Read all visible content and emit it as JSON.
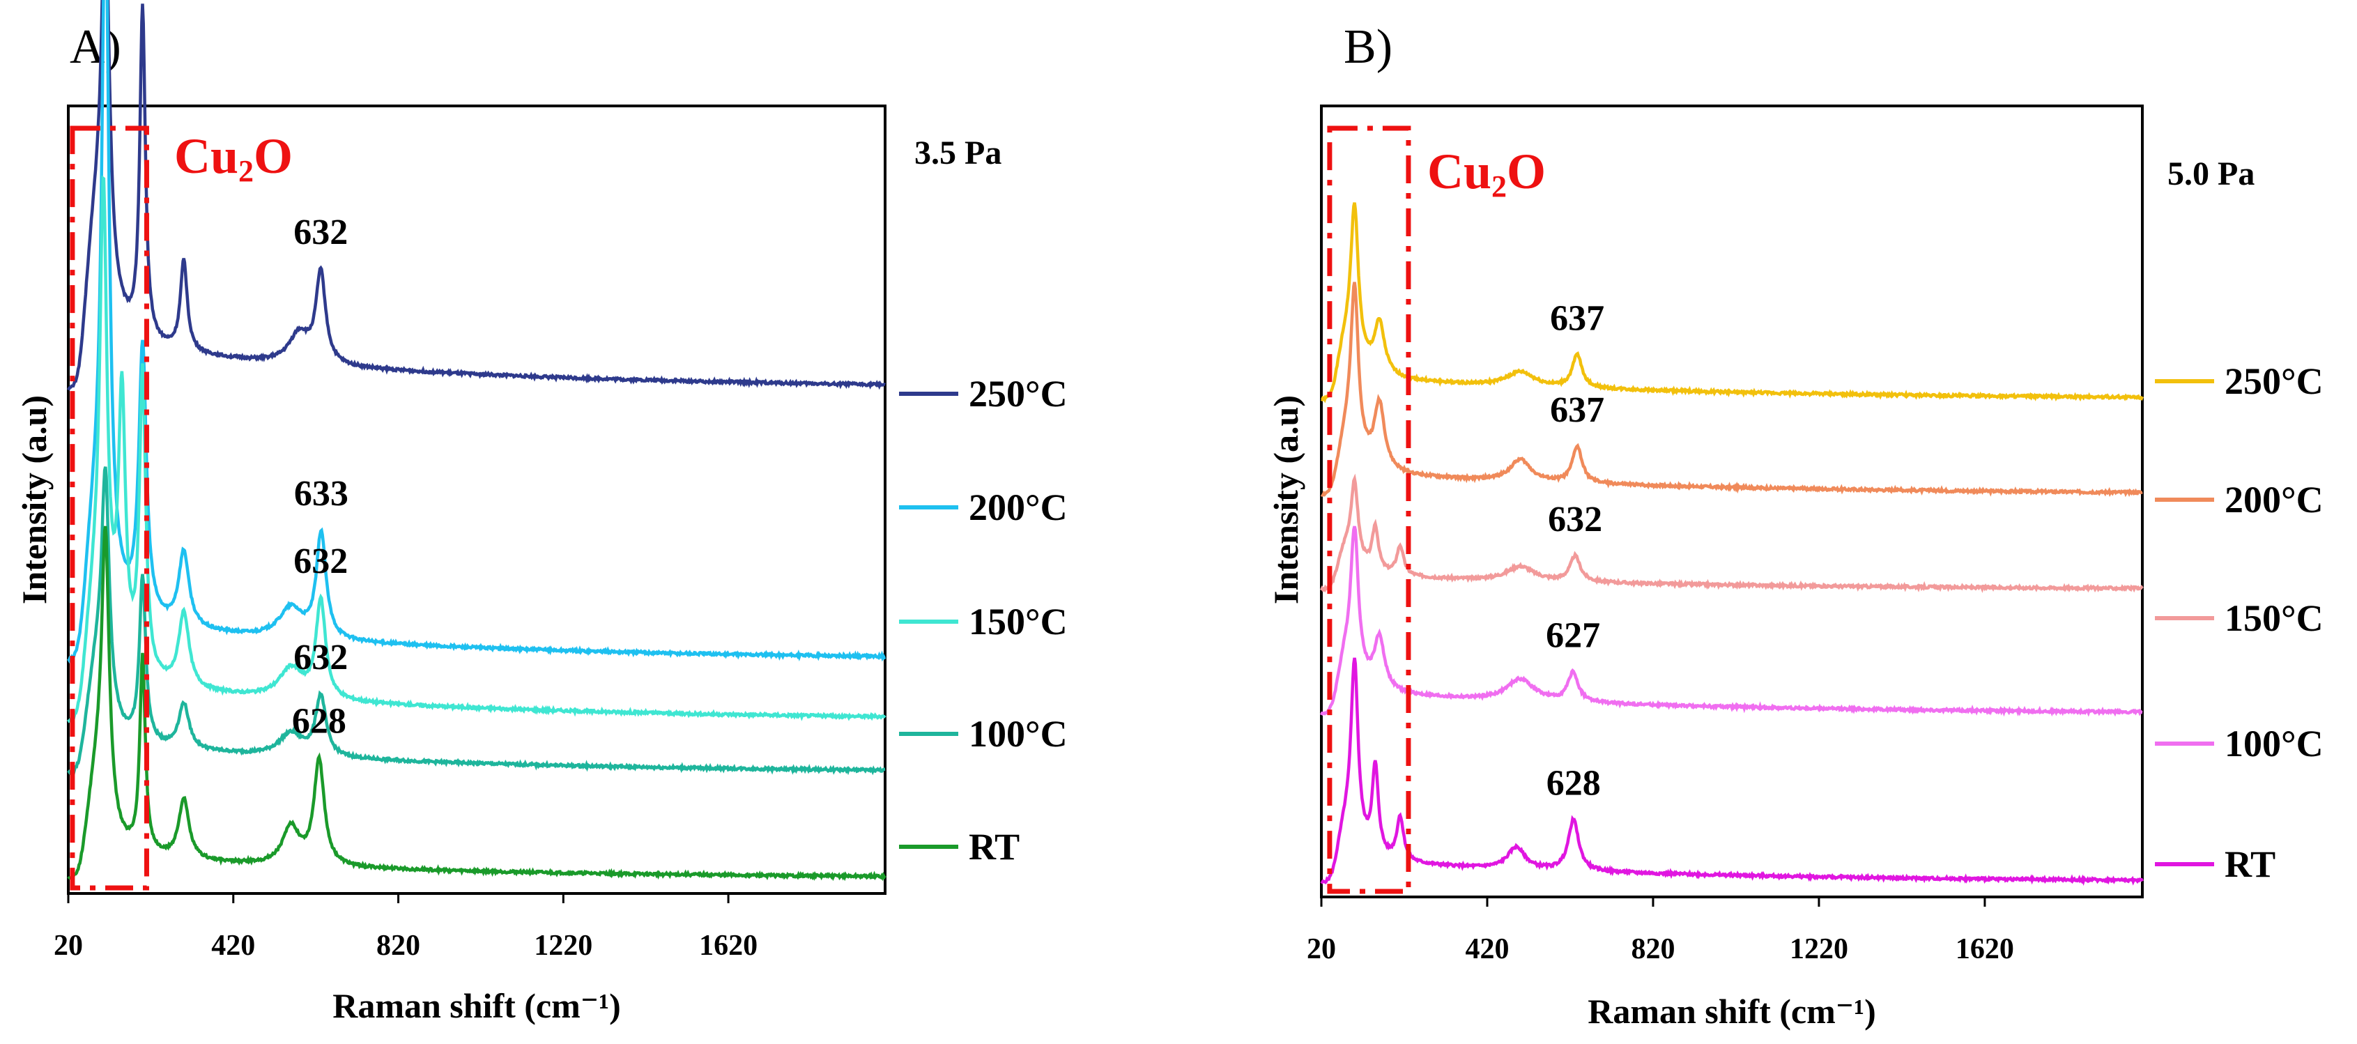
{
  "figure": {
    "panels": [
      {
        "panel_label": "A)",
        "title": "Cu₂O",
        "pressure": "3.5 Pa",
        "xlabel": "Raman shift (cm⁻¹)",
        "ylabel": "Intensity (a.u)",
        "series_labels": [
          "250°C",
          "200°C",
          "150°C",
          "100°C",
          "RT"
        ],
        "peak_labels": [
          "632",
          "633",
          "632",
          "632",
          "628"
        ]
      },
      {
        "panel_label": "B)",
        "title": "Cu₂O",
        "pressure": "5.0 Pa",
        "xlabel": "Raman shift (cm⁻¹)",
        "ylabel": "Intensity (a.u)",
        "series_labels": [
          "250°C",
          "200°C",
          "150°C",
          "100°C",
          "RT"
        ],
        "peak_labels": [
          "637",
          "637",
          "632",
          "627",
          "628"
        ]
      }
    ]
  },
  "chart_data": [
    {
      "type": "line",
      "title": "Cu₂O",
      "annotation": "3.5 Pa",
      "xlabel": "Raman shift (cm⁻¹)",
      "ylabel": "Intensity (a.u)",
      "xlim": [
        20,
        2000
      ],
      "xticks": [
        20,
        420,
        820,
        1220,
        1620
      ],
      "highlight_region": [
        30,
        210
      ],
      "series": [
        {
          "name": "250°C",
          "color": "#2e3a8c",
          "offset": 0.66,
          "scale": 1.0,
          "peak_cm1": 632,
          "peak_label": "632",
          "peaks": [
            [
              110,
              0.48,
              22
            ],
            [
              200,
              0.44,
              16
            ],
            [
              300,
              0.12,
              20
            ],
            [
              580,
              0.04,
              60
            ],
            [
              632,
              0.12,
              28
            ],
            [
              90,
              0.16,
              70
            ]
          ],
          "baseline": 0.06
        },
        {
          "name": "200°C",
          "color": "#1ec0f0",
          "offset": 0.3,
          "scale": 1.0,
          "peak_cm1": 633,
          "peak_label": "633",
          "peaks": [
            [
              110,
              0.88,
              20
            ],
            [
              200,
              0.36,
              22
            ],
            [
              300,
              0.1,
              30
            ],
            [
              560,
              0.04,
              70
            ],
            [
              633,
              0.14,
              28
            ],
            [
              90,
              0.14,
              70
            ]
          ],
          "baseline": 0.05
        },
        {
          "name": "150°C",
          "color": "#3fe6d2",
          "offset": 0.22,
          "scale": 1.0,
          "peak_cm1": 632,
          "peak_label": "632",
          "peaks": [
            [
              105,
              0.56,
              20
            ],
            [
              150,
              0.35,
              20
            ],
            [
              200,
              0.4,
              18
            ],
            [
              300,
              0.1,
              30
            ],
            [
              560,
              0.04,
              70
            ],
            [
              632,
              0.13,
              28
            ],
            [
              90,
              0.12,
              70
            ]
          ],
          "baseline": 0.05
        },
        {
          "name": "100°C",
          "color": "#1eb59c",
          "offset": 0.15,
          "scale": 1.0,
          "peak_cm1": 632,
          "peak_label": "632",
          "peaks": [
            [
              110,
              0.3,
              22
            ],
            [
              200,
              0.22,
              18
            ],
            [
              300,
              0.06,
              30
            ],
            [
              560,
              0.03,
              70
            ],
            [
              632,
              0.08,
              30
            ],
            [
              90,
              0.1,
              60
            ]
          ],
          "baseline": 0.04
        },
        {
          "name": "RT",
          "color": "#1a9a2a",
          "offset": 0.01,
          "scale": 1.0,
          "peak_cm1": 628,
          "peak_label": "628",
          "peaks": [
            [
              110,
              0.37,
              22
            ],
            [
              200,
              0.26,
              16
            ],
            [
              300,
              0.08,
              30
            ],
            [
              560,
              0.05,
              50
            ],
            [
              628,
              0.14,
              30
            ],
            [
              90,
              0.1,
              60
            ]
          ],
          "baseline": 0.03
        }
      ]
    },
    {
      "type": "line",
      "title": "Cu₂O",
      "annotation": "5.0 Pa",
      "xlabel": "Raman shift (cm⁻¹)",
      "ylabel": "Intensity (a.u)",
      "xlim": [
        20,
        2000
      ],
      "xticks": [
        20,
        420,
        820,
        1220,
        1620
      ],
      "highlight_region": [
        40,
        230
      ],
      "series": [
        {
          "name": "250°C",
          "color": "#f2c00c",
          "offset": 0.67,
          "scale": 1.0,
          "peak_cm1": 637,
          "peak_label": "637",
          "peaks": [
            [
              100,
              0.2,
              22
            ],
            [
              160,
              0.07,
              30
            ],
            [
              500,
              0.02,
              80
            ],
            [
              637,
              0.045,
              28
            ],
            [
              80,
              0.05,
              70
            ]
          ],
          "baseline": 0.03
        },
        {
          "name": "200°C",
          "color": "#f08a5a",
          "offset": 0.54,
          "scale": 1.0,
          "peak_cm1": 637,
          "peak_label": "637",
          "peaks": [
            [
              100,
              0.22,
              22
            ],
            [
              160,
              0.09,
              30
            ],
            [
              500,
              0.03,
              60
            ],
            [
              637,
              0.05,
              28
            ],
            [
              80,
              0.05,
              70
            ]
          ],
          "baseline": 0.03
        },
        {
          "name": "150°C",
          "color": "#f29a9a",
          "offset": 0.41,
          "scale": 1.0,
          "peak_cm1": 632,
          "peak_label": "632",
          "peaks": [
            [
              100,
              0.1,
              20
            ],
            [
              150,
              0.06,
              18
            ],
            [
              210,
              0.04,
              20
            ],
            [
              500,
              0.02,
              80
            ],
            [
              632,
              0.035,
              30
            ],
            [
              80,
              0.04,
              70
            ]
          ],
          "baseline": 0.02
        },
        {
          "name": "100°C",
          "color": "#f06ef0",
          "offset": 0.24,
          "scale": 1.0,
          "peak_cm1": 627,
          "peak_label": "627",
          "peaks": [
            [
              100,
              0.19,
              22
            ],
            [
              160,
              0.07,
              30
            ],
            [
              500,
              0.03,
              80
            ],
            [
              627,
              0.04,
              30
            ],
            [
              80,
              0.05,
              70
            ]
          ],
          "baseline": 0.03
        },
        {
          "name": "RT",
          "color": "#e016e0",
          "offset": 0.01,
          "scale": 1.0,
          "peak_cm1": 628,
          "peak_label": "628",
          "peaks": [
            [
              100,
              0.24,
              20
            ],
            [
              150,
              0.12,
              18
            ],
            [
              210,
              0.06,
              20
            ],
            [
              490,
              0.03,
              50
            ],
            [
              628,
              0.07,
              30
            ],
            [
              80,
              0.05,
              70
            ]
          ],
          "baseline": 0.03
        }
      ]
    }
  ]
}
